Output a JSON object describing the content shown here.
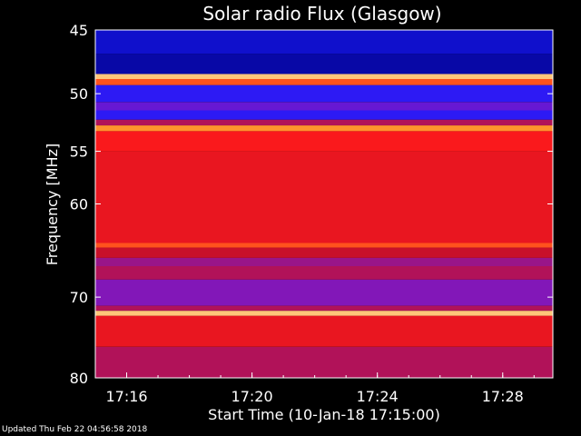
{
  "chart_data": {
    "type": "heatmap",
    "title": "Solar radio Flux (Glasgow)",
    "ylabel": "Frequency [MHz]",
    "xlabel": "Start Time (10-Jan-18 17:15:00)",
    "ylim": [
      45,
      80
    ],
    "y_scale": "log",
    "y_ticks": [
      "45",
      "50",
      "55",
      "60",
      "70",
      "80"
    ],
    "x_ticks": [
      "17:16",
      "17:20",
      "17:24",
      "17:28"
    ],
    "colormap": [
      "#000080",
      "#1a1aff",
      "#7a18c8",
      "#c8102a",
      "#ff1a1a",
      "#ff8a20",
      "#ffe0a0"
    ],
    "bands": [
      {
        "from": 45.0,
        "to": 46.8,
        "level": 0.1
      },
      {
        "from": 46.8,
        "to": 48.4,
        "level": 0.05
      },
      {
        "from": 48.4,
        "to": 48.8,
        "level": 0.95
      },
      {
        "from": 48.8,
        "to": 49.3,
        "level": 0.75
      },
      {
        "from": 49.3,
        "to": 50.7,
        "level": 0.2
      },
      {
        "from": 50.7,
        "to": 51.4,
        "level": 0.3
      },
      {
        "from": 51.4,
        "to": 52.2,
        "level": 0.2
      },
      {
        "from": 52.2,
        "to": 52.7,
        "level": 0.45
      },
      {
        "from": 52.7,
        "to": 53.2,
        "level": 0.85
      },
      {
        "from": 53.2,
        "to": 55.0,
        "level": 0.65
      },
      {
        "from": 55.0,
        "to": 64.0,
        "level": 0.6
      },
      {
        "from": 64.0,
        "to": 64.5,
        "level": 0.75
      },
      {
        "from": 64.5,
        "to": 65.6,
        "level": 0.5
      },
      {
        "from": 65.6,
        "to": 66.5,
        "level": 0.4
      },
      {
        "from": 66.5,
        "to": 68.0,
        "level": 0.45
      },
      {
        "from": 68.0,
        "to": 71.0,
        "level": 0.35
      },
      {
        "from": 71.0,
        "to": 71.6,
        "level": 0.45
      },
      {
        "from": 71.6,
        "to": 72.2,
        "level": 0.95
      },
      {
        "from": 72.2,
        "to": 76.0,
        "level": 0.6
      },
      {
        "from": 76.0,
        "to": 80.0,
        "level": 0.45
      }
    ]
  },
  "footer": "Updated Thu Feb 22 04:56:58 2018"
}
